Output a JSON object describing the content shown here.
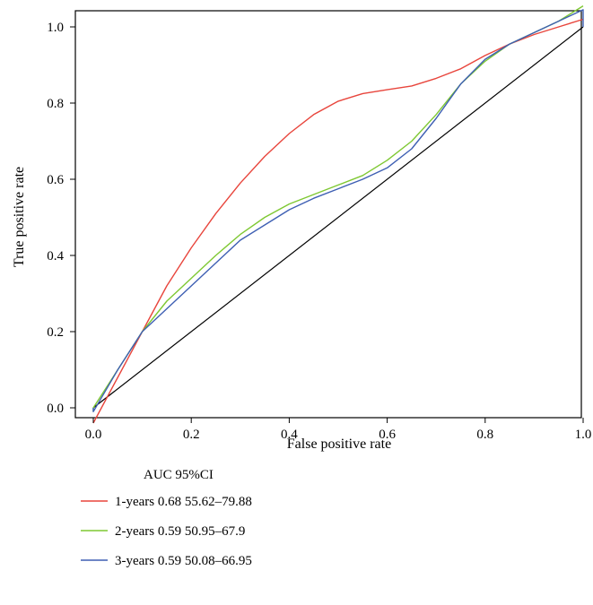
{
  "chart_data": {
    "type": "line",
    "xlabel": "False positive rate",
    "ylabel": "True positive rate",
    "xlim": [
      -0.04,
      1.0
    ],
    "ylim": [
      -0.04,
      1.04
    ],
    "xticks": [
      "0.0",
      "0.2",
      "0.4",
      "0.6",
      "0.8",
      "1.0"
    ],
    "yticks": [
      "0.0",
      "0.2",
      "0.4",
      "0.6",
      "0.8",
      "1.0"
    ],
    "grid": false,
    "legend_placement": "bottom-left",
    "legend_title": "AUC 95%CI",
    "reference_line": {
      "x": [
        0,
        1
      ],
      "y": [
        0,
        1
      ],
      "color": "#000000"
    },
    "series": [
      {
        "name": "1-years 0.68 55.62–79.88",
        "color": "#e8453c",
        "x": [
          0.0,
          0.0,
          0.05,
          0.1,
          0.15,
          0.2,
          0.25,
          0.3,
          0.35,
          0.4,
          0.45,
          0.5,
          0.55,
          0.6,
          0.65,
          0.7,
          0.75,
          0.8,
          0.85,
          0.9,
          0.95,
          1.0
        ],
        "y": [
          -0.04,
          -0.04,
          0.08,
          0.2,
          0.32,
          0.42,
          0.51,
          0.59,
          0.66,
          0.72,
          0.77,
          0.805,
          0.825,
          0.835,
          0.845,
          0.865,
          0.89,
          0.925,
          0.955,
          0.98,
          1.0,
          1.02
        ]
      },
      {
        "name": "2-years 0.59 50.95–67.9",
        "color": "#7ec832",
        "x": [
          0.0,
          0.0,
          0.05,
          0.1,
          0.15,
          0.2,
          0.25,
          0.3,
          0.35,
          0.4,
          0.45,
          0.5,
          0.55,
          0.6,
          0.65,
          0.7,
          0.75,
          0.8,
          0.85,
          0.9,
          0.95,
          1.0
        ],
        "y": [
          -0.01,
          0.0,
          0.1,
          0.2,
          0.28,
          0.34,
          0.4,
          0.455,
          0.5,
          0.535,
          0.56,
          0.585,
          0.61,
          0.65,
          0.7,
          0.77,
          0.85,
          0.91,
          0.955,
          0.985,
          1.015,
          1.055
        ]
      },
      {
        "name": "3-years 0.59 50.08–66.95",
        "color": "#3e5fb3",
        "x": [
          0.0,
          0.0,
          0.05,
          0.1,
          0.15,
          0.2,
          0.25,
          0.3,
          0.35,
          0.4,
          0.45,
          0.5,
          0.55,
          0.6,
          0.65,
          0.7,
          0.75,
          0.8,
          0.85,
          0.9,
          0.95,
          1.0,
          1.0
        ],
        "y": [
          0.0,
          -0.01,
          0.1,
          0.2,
          0.26,
          0.32,
          0.38,
          0.44,
          0.48,
          0.52,
          0.55,
          0.575,
          0.6,
          0.63,
          0.68,
          0.76,
          0.85,
          0.915,
          0.955,
          0.985,
          1.015,
          1.045,
          1.0
        ]
      }
    ]
  }
}
